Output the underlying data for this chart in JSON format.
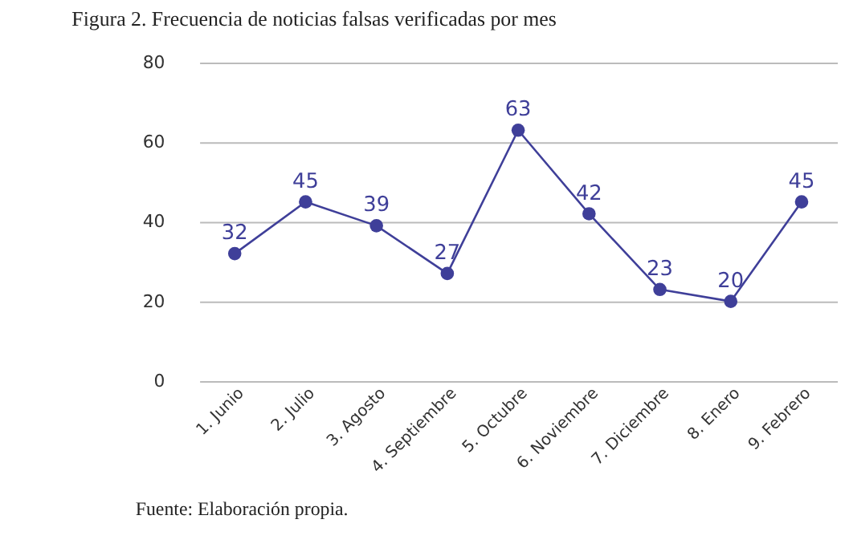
{
  "chart_data": {
    "type": "line",
    "title": "Figura 2. Frecuencia de noticias falsas verificadas por mes",
    "categories": [
      "1. Junio",
      "2. Julio",
      "3. Agosto",
      "4. Septiembre",
      "5. Octubre",
      "6. Noviembre",
      "7. Diciembre",
      "8. Enero",
      "9. Febrero"
    ],
    "series": [
      {
        "color": "#3f3f99",
        "values": [
          32,
          45,
          39,
          27,
          63,
          42,
          23,
          20,
          45
        ]
      }
    ],
    "ylim": [
      0,
      80
    ],
    "yticks": [
      0,
      20,
      40,
      60,
      80
    ],
    "grid": "y",
    "marker": "circle",
    "line_style": "solid",
    "data_labels": true,
    "annotations": [
      "Fuente: Elaboración propia."
    ]
  }
}
